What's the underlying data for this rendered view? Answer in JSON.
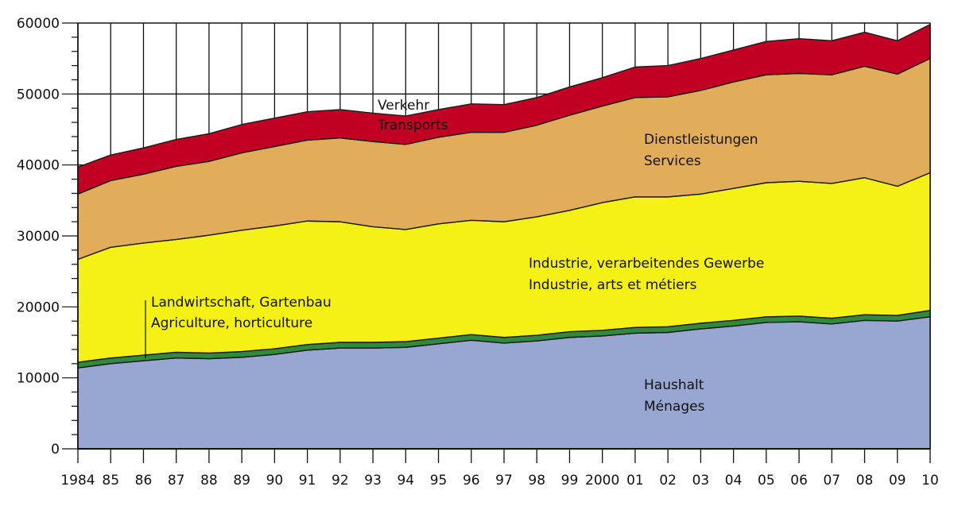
{
  "chart_data": {
    "type": "area",
    "stacked": true,
    "title": "",
    "xlabel": "",
    "ylabel": "",
    "ylim": [
      0,
      60000
    ],
    "yticks": [
      "0",
      "10000",
      "20000",
      "30000",
      "40000",
      "50000",
      "60000"
    ],
    "ytick_values": [
      0,
      10000,
      20000,
      30000,
      40000,
      50000,
      60000
    ],
    "grid": true,
    "x": [
      1984,
      1985,
      1986,
      1987,
      1988,
      1989,
      1990,
      1991,
      1992,
      1993,
      1994,
      1995,
      1996,
      1997,
      1998,
      1999,
      2000,
      2001,
      2002,
      2003,
      2004,
      2005,
      2006,
      2007,
      2008,
      2009,
      2010
    ],
    "xtick_labels": [
      "1984",
      "85",
      "86",
      "87",
      "88",
      "89",
      "90",
      "91",
      "92",
      "93",
      "94",
      "95",
      "96",
      "97",
      "98",
      "99",
      "2000",
      "01",
      "02",
      "03",
      "04",
      "05",
      "06",
      "07",
      "08",
      "09",
      "10"
    ],
    "series": [
      {
        "name": "Haushalt / Ménages",
        "color": "#98a6d2",
        "values": [
          11400,
          12000,
          12400,
          12800,
          12700,
          12900,
          13300,
          13900,
          14200,
          14200,
          14300,
          14800,
          15300,
          14900,
          15200,
          15700,
          15900,
          16300,
          16400,
          16900,
          17300,
          17800,
          17900,
          17600,
          18100,
          18000,
          18600
        ]
      },
      {
        "name": "Landwirtschaft, Gartenbau / Agriculture, horticulture",
        "color": "#2f8a3e",
        "values": [
          800,
          800,
          800,
          800,
          800,
          800,
          800,
          800,
          800,
          800,
          800,
          800,
          800,
          800,
          800,
          800,
          800,
          800,
          800,
          800,
          800,
          800,
          800,
          800,
          800,
          800,
          900
        ]
      },
      {
        "name": "Industrie, verarbeitendes Gewerbe / Industrie, arts et métiers",
        "color": "#f5f015",
        "values": [
          14500,
          15600,
          15800,
          15900,
          16600,
          17100,
          17300,
          17400,
          17000,
          16300,
          15800,
          16100,
          16100,
          16300,
          16700,
          17100,
          18000,
          18400,
          18300,
          18200,
          18600,
          18900,
          19000,
          19000,
          19300,
          18200,
          19400
        ]
      },
      {
        "name": "Dienstleistungen / Services",
        "color": "#e2ad5a",
        "values": [
          9200,
          9400,
          9700,
          10300,
          10400,
          10900,
          11200,
          11400,
          11800,
          12000,
          12000,
          12200,
          12400,
          12600,
          12900,
          13400,
          13600,
          14000,
          14100,
          14600,
          15000,
          15200,
          15200,
          15300,
          15700,
          15800,
          16100
        ]
      },
      {
        "name": "Verkehr / Transports",
        "color": "#c10024",
        "values": [
          3800,
          3600,
          3700,
          3800,
          3900,
          4000,
          4000,
          4000,
          4000,
          4000,
          4000,
          3900,
          4000,
          3900,
          3900,
          4000,
          4000,
          4300,
          4400,
          4500,
          4500,
          4700,
          4900,
          4800,
          4800,
          4700,
          4800
        ]
      }
    ],
    "annotations": [
      {
        "line1": "Haushalt",
        "line2": "Ménages"
      },
      {
        "line1": "Landwirtschaft, Gartenbau",
        "line2": "Agriculture, horticulture"
      },
      {
        "line1": "Industrie, verarbeitendes Gewerbe",
        "line2": "Industrie, arts et métiers"
      },
      {
        "line1": "Dienstleistungen",
        "line2": "Services"
      },
      {
        "line1": "Verkehr",
        "line2": "Transports"
      }
    ]
  }
}
